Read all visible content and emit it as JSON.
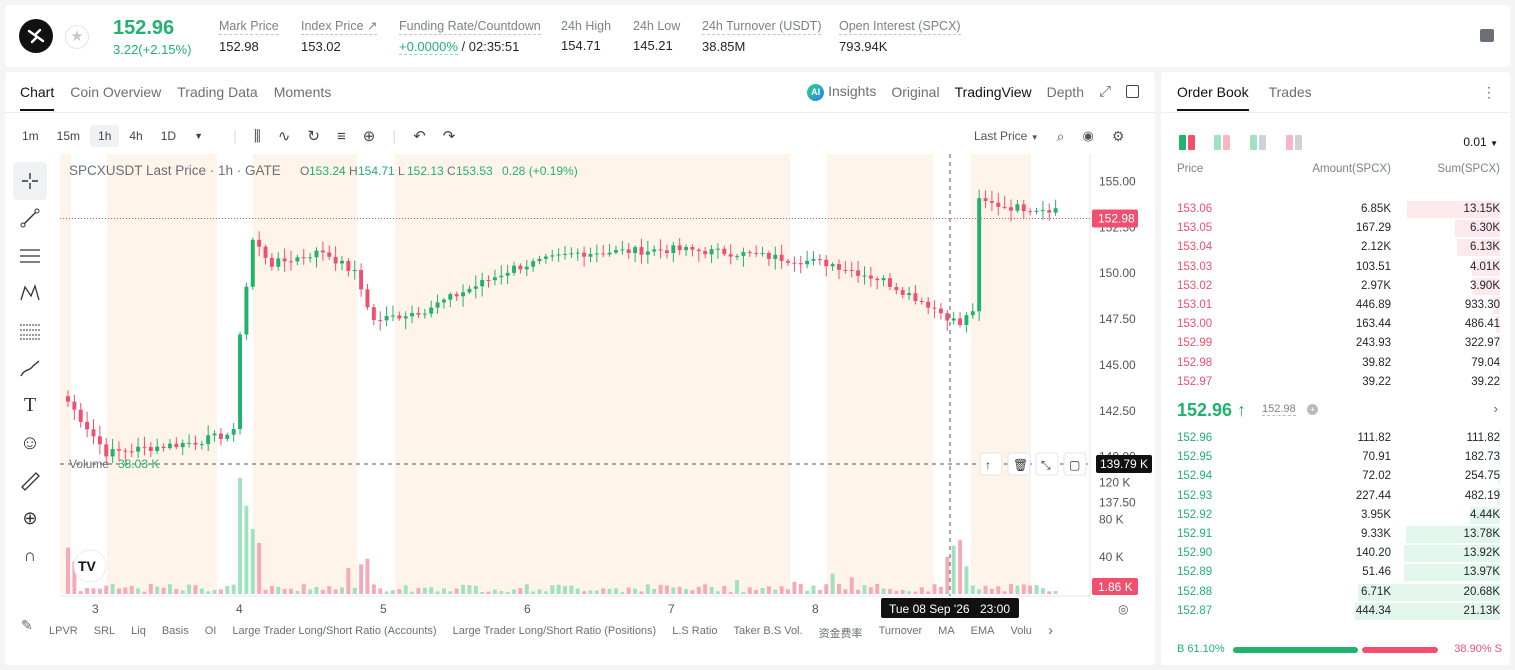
{
  "header": {
    "last_price": "152.96",
    "change": "3.22(+2.15%)",
    "stats": [
      {
        "label": "Mark Price",
        "value": "152.98"
      },
      {
        "label": "Index Price ↗",
        "value": "153.02"
      },
      {
        "label": "Funding Rate/Countdown",
        "value_green": "+0.0000%",
        "value": " / 02:35:51"
      },
      {
        "label": "24h High",
        "value": "154.71"
      },
      {
        "label": "24h Low",
        "value": "145.21"
      },
      {
        "label": "24h Turnover (USDT)",
        "value": "38.85M"
      },
      {
        "label": "Open Interest (SPCX)",
        "value": "793.94K"
      }
    ]
  },
  "chart_tabs": [
    "Chart",
    "Coin Overview",
    "Trading Data",
    "Moments"
  ],
  "chart_modes": {
    "insights": "Insights",
    "original": "Original",
    "tradingview": "TradingView",
    "depth": "Depth",
    "ai_badge": "AI"
  },
  "intervals": [
    "1m",
    "15m",
    "1h",
    "4h",
    "1D"
  ],
  "toolbar": {
    "price_type": "Last Price"
  },
  "legend": {
    "symbol": "SPCXUSDT Last Price · 1h · GATE",
    "o_label": "O",
    "o": "153.24",
    "h_label": "H",
    "h": "154.71",
    "l_label": "L",
    "l": "152.13",
    "c_label": "C",
    "c": "153.53",
    "chg": "0.28 (+0.19%)"
  },
  "volume_legend": {
    "label": "Volume",
    "value": "38.03 K"
  },
  "crosshair": {
    "date": "Tue 08 Sep '26",
    "time": "23:00",
    "volume_tag": "139.79 K"
  },
  "last_price_tag": "152.98",
  "volume_last_tag": "1.86 K",
  "bottom_indicators": [
    "LPVR",
    "SRL",
    "Liq",
    "Basis",
    "OI",
    "Large Trader Long/Short Ratio (Accounts)",
    "Large Trader Long/Short Ratio (Positions)",
    "L.S Ratio",
    "Taker B.S Vol.",
    "资金费率",
    "Turnover",
    "MA",
    "EMA",
    "Volu"
  ],
  "chart_data": {
    "type": "candlestick",
    "title": "SPCXUSDT Last Price · 1h · GATE",
    "y_ticks": [
      155.0,
      152.5,
      150.0,
      147.5,
      145.0,
      142.5,
      140.0,
      137.5
    ],
    "y_tick_labels": [
      "155.00",
      "152.50",
      "150.00",
      "147.50",
      "145.00",
      "142.50",
      "140.00",
      "137.50"
    ],
    "vol_ticks": [
      120,
      80,
      40
    ],
    "vol_tick_labels": [
      "120 K",
      "80 K",
      "40 K"
    ],
    "x_labels": [
      "3",
      "4",
      "5",
      "6",
      "7",
      "8"
    ],
    "ylim": [
      136,
      156.5
    ],
    "key_points": [
      [
        0,
        143.0
      ],
      [
        6,
        140.2
      ],
      [
        20,
        140.8
      ],
      [
        26,
        141.3
      ],
      [
        27,
        146.8
      ],
      [
        29,
        151.8
      ],
      [
        32,
        150.5
      ],
      [
        40,
        151.2
      ],
      [
        45,
        150.0
      ],
      [
        48,
        147.4
      ],
      [
        56,
        148.0
      ],
      [
        70,
        150.3
      ],
      [
        80,
        151.1
      ],
      [
        95,
        151.3
      ],
      [
        105,
        151.1
      ],
      [
        115,
        150.7
      ],
      [
        120,
        150.5
      ],
      [
        128,
        149.6
      ],
      [
        135,
        148.3
      ],
      [
        140,
        147.2
      ],
      [
        142,
        148.0
      ],
      [
        143,
        153.9
      ],
      [
        148,
        153.6
      ],
      [
        155,
        153.5
      ]
    ],
    "volume_highlights": [
      [
        27,
        125
      ],
      [
        28,
        95
      ],
      [
        29,
        70
      ],
      [
        30,
        55
      ],
      [
        47,
        38
      ],
      [
        46,
        32
      ],
      [
        44,
        28
      ],
      [
        138,
        40
      ],
      [
        139,
        52
      ],
      [
        140,
        58
      ],
      [
        141,
        30
      ],
      [
        120,
        22
      ],
      [
        123,
        18
      ],
      [
        105,
        15
      ],
      [
        114,
        13
      ],
      [
        0,
        50
      ],
      [
        1,
        35
      ]
    ]
  },
  "orderbook": {
    "tabs": [
      "Order Book",
      "Trades"
    ],
    "precision": "0.01",
    "columns": {
      "price": "Price",
      "amount": "Amount(SPCX)",
      "sum": "Sum(SPCX)"
    },
    "asks": [
      {
        "p": "153.06",
        "a": "6.85K",
        "s": "13.15K",
        "d": 0.62
      },
      {
        "p": "153.05",
        "a": "167.29",
        "s": "6.30K",
        "d": 0.3
      },
      {
        "p": "153.04",
        "a": "2.12K",
        "s": "6.13K",
        "d": 0.29
      },
      {
        "p": "153.03",
        "a": "103.51",
        "s": "4.01K",
        "d": 0.19
      },
      {
        "p": "153.02",
        "a": "2.97K",
        "s": "3.90K",
        "d": 0.18
      },
      {
        "p": "153.01",
        "a": "446.89",
        "s": "933.30",
        "d": 0.045
      },
      {
        "p": "153.00",
        "a": "163.44",
        "s": "486.41",
        "d": 0.025
      },
      {
        "p": "152.99",
        "a": "243.93",
        "s": "322.97",
        "d": 0.016
      },
      {
        "p": "152.98",
        "a": "39.82",
        "s": "79.04",
        "d": 0.005
      },
      {
        "p": "152.97",
        "a": "39.22",
        "s": "39.22",
        "d": 0.003
      }
    ],
    "mid": {
      "price": "152.96 ↑",
      "mark": "152.98"
    },
    "bids": [
      {
        "p": "152.96",
        "a": "111.82",
        "s": "111.82",
        "d": 0.005
      },
      {
        "p": "152.95",
        "a": "70.91",
        "s": "182.73",
        "d": 0.008
      },
      {
        "p": "152.94",
        "a": "72.02",
        "s": "254.75",
        "d": 0.012
      },
      {
        "p": "152.93",
        "a": "227.44",
        "s": "482.19",
        "d": 0.022
      },
      {
        "p": "152.92",
        "a": "3.95K",
        "s": "4.44K",
        "d": 0.2
      },
      {
        "p": "152.91",
        "a": "9.33K",
        "s": "13.78K",
        "d": 0.63
      },
      {
        "p": "152.90",
        "a": "140.20",
        "s": "13.92K",
        "d": 0.64
      },
      {
        "p": "152.89",
        "a": "51.46",
        "s": "13.97K",
        "d": 0.64
      },
      {
        "p": "152.88",
        "a": "6.71K",
        "s": "20.68K",
        "d": 0.95
      },
      {
        "p": "152.87",
        "a": "444.34",
        "s": "21.13K",
        "d": 0.97
      }
    ],
    "buy_ratio": "B 61.10%",
    "sell_ratio": "38.90% S",
    "buy_fraction": 0.611
  },
  "colors": {
    "up": "#21b26e",
    "down": "#f0506e",
    "session_band": "#fff4ea"
  }
}
